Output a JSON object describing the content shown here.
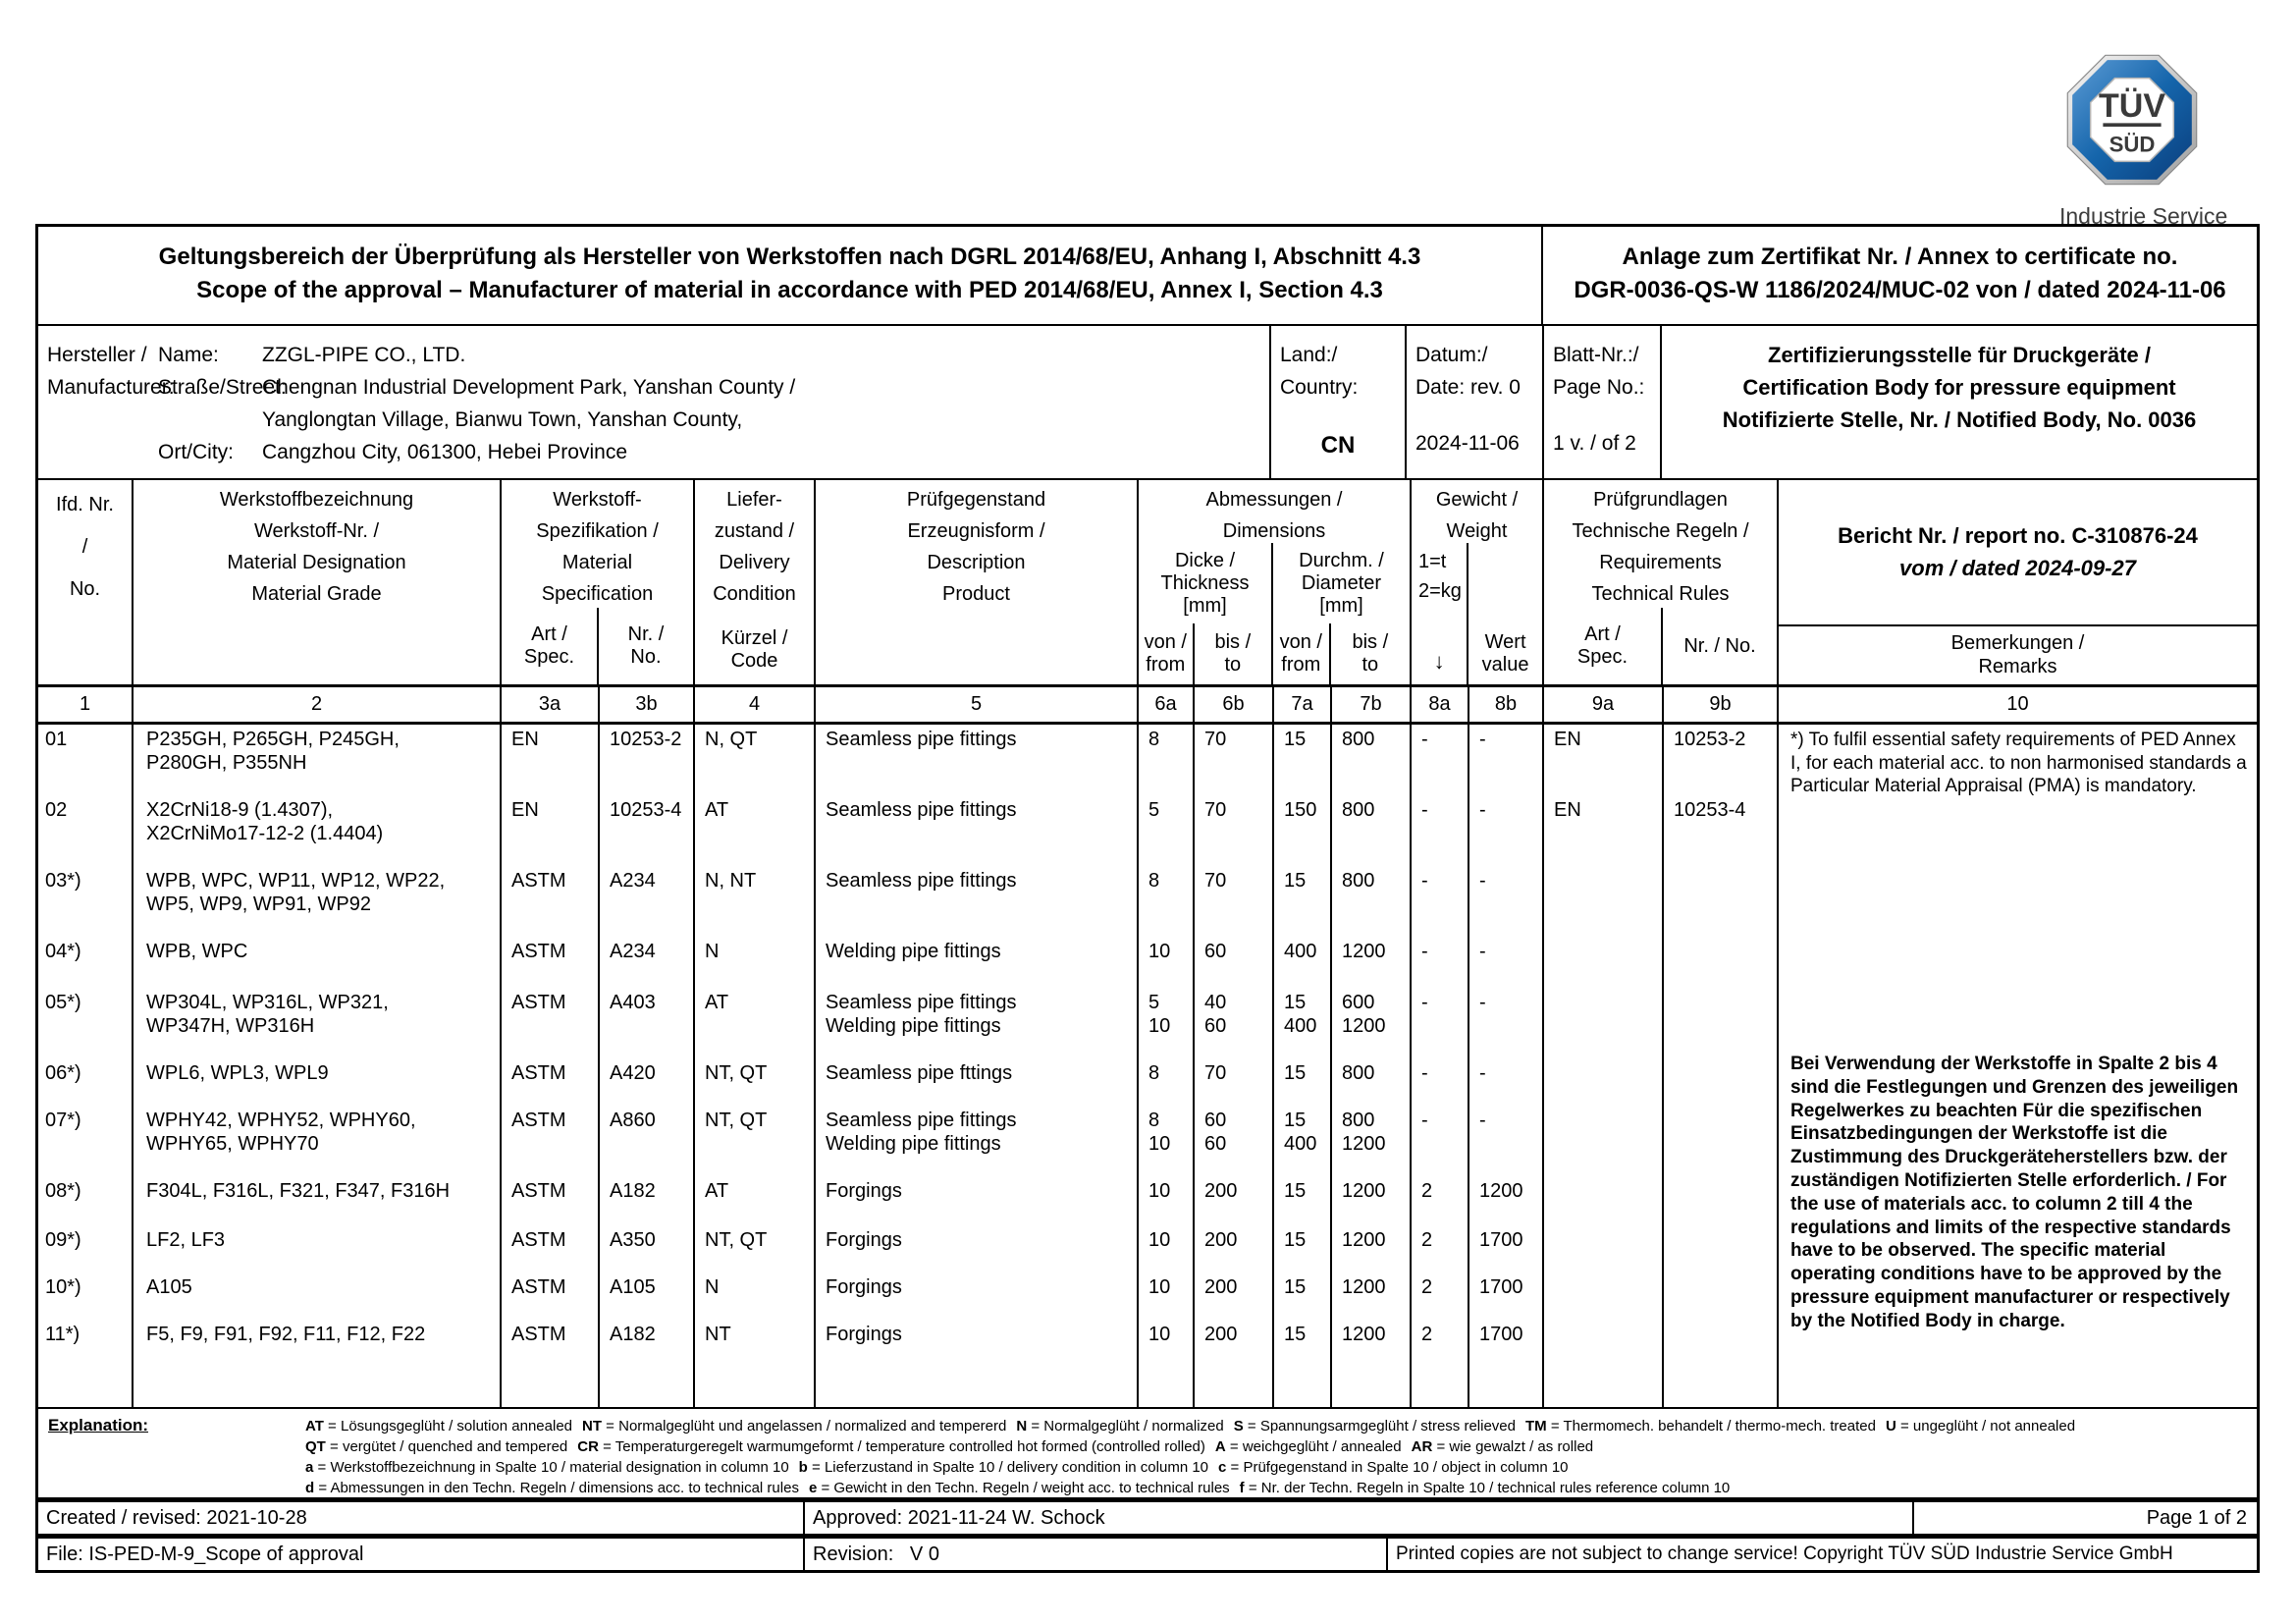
{
  "logo": {
    "top": "TÜV",
    "bottom": "SÜD",
    "caption": "Industrie Service",
    "blue": "#0f5da8"
  },
  "title": {
    "de": "Geltungsbereich der Überprüfung als Hersteller von Werkstoffen nach DGRL 2014/68/EU, Anhang I, Abschnitt 4.3",
    "en": "Scope of the approval – Manufacturer of material in accordance with PED 2014/68/EU, Annex I, Section 4.3",
    "annex1": "Anlage zum Zertifikat Nr. / Annex to certificate no.",
    "annex2": "DGR-0036-QS-W 1186/2024/MUC-02 von / dated 2024-11-06"
  },
  "info": {
    "manufacturer_label": "Hersteller /\nManufacturer:",
    "name_label": "Name:",
    "name": "ZZGL-PIPE CO., LTD.",
    "street_label": "Straße/Street:",
    "street1": "Chengnan Industrial Development Park, Yanshan County /",
    "street2": "Yanglongtan Village, Bianwu Town, Yanshan County,",
    "city_label": "Ort/City:",
    "city": "Cangzhou City, 061300, Hebei Province",
    "country_label": "Land:/\nCountry:",
    "country": "CN",
    "date_label": "Datum:/\nDate: rev. 0",
    "date": "2024-11-06",
    "page_label": "Blatt-Nr.:/\nPage No.:",
    "page": "1 v. / of 2",
    "cert_body": "Zertifizierungsstelle für Druckgeräte /\nCertification Body for pressure equipment\nNotifizierte Stelle, Nr. / Notified Body, No. 0036"
  },
  "table": {
    "head": {
      "no": "Ifd. Nr.\n/\nNo.",
      "designation": "Werkstoffbezeichnung\nWerkstoff-Nr. /\nMaterial Designation\nMaterial Grade",
      "specification": "Werkstoff-\nSpezifikation /\nMaterial\nSpecification",
      "spec_art": "Art /\nSpec.",
      "spec_nr": "Nr. /\nNo.",
      "delivery": "Liefer-\nzustand /\nDelivery\nCondition",
      "delivery_code": "Kürzel /\nCode",
      "description": "Prüfgegenstand\nErzeugnisform /\nDescription\nProduct",
      "dimensions": "Abmessungen /\nDimensions",
      "thickness": "Dicke /\nThickness\n[mm]",
      "diameter": "Durchm. /\nDiameter\n[mm]",
      "from": "von /\nfrom",
      "to": "bis /\nto",
      "weight": "Gewicht /\nWeight",
      "weight_units": "1=t\n2=kg",
      "weight_arrow": "↓",
      "weight_value": "Wert\nvalue",
      "rules": "Prüfgrundlagen\nTechnische Regeln /\nRequirements\nTechnical Rules",
      "rules_art": "Art /\nSpec.",
      "rules_nr": "Nr. / No.",
      "report1": "Bericht Nr. / report no. C-310876-24",
      "report2": "vom / dated 2024-09-27",
      "remarks": "Bemerkungen /\nRemarks",
      "numbers": [
        "1",
        "2",
        "3a",
        "3b",
        "4",
        "5",
        "6a",
        "6b",
        "7a",
        "7b",
        "8a",
        "8b",
        "9a",
        "9b",
        "10"
      ]
    },
    "rows": [
      {
        "no": "01",
        "grades": "P235GH, P265GH, P245GH,\nP280GH, P355NH",
        "spec": "EN",
        "spec_no": "10253-2",
        "code": "N, QT",
        "products": "Seamless pipe fittings",
        "t_from": "8",
        "t_to": "70",
        "d_from": "15",
        "d_to": "800",
        "w_unit": "-",
        "w_value": "-",
        "rule_spec": "EN",
        "rule_no": "10253-2"
      },
      {
        "no": "02",
        "grades": "X2CrNi18-9 (1.4307),\nX2CrNiMo17-12-2 (1.4404)",
        "spec": "EN",
        "spec_no": "10253-4",
        "code": "AT",
        "products": "Seamless pipe fittings",
        "t_from": "5",
        "t_to": "70",
        "d_from": "150",
        "d_to": "800",
        "w_unit": "-",
        "w_value": "-",
        "rule_spec": "EN",
        "rule_no": "10253-4"
      },
      {
        "no": "03*)",
        "grades": "WPB, WPC, WP11, WP12, WP22,\nWP5, WP9, WP91, WP92",
        "spec": "ASTM",
        "spec_no": "A234",
        "code": "N, NT",
        "products": "Seamless pipe fittings",
        "t_from": "8",
        "t_to": "70",
        "d_from": "15",
        "d_to": "800",
        "w_unit": "-",
        "w_value": "-",
        "rule_spec": "",
        "rule_no": ""
      },
      {
        "no": "04*)",
        "grades": "WPB, WPC",
        "spec": "ASTM",
        "spec_no": "A234",
        "code": "N",
        "products": "Welding pipe fittings",
        "t_from": "10",
        "t_to": "60",
        "d_from": "400",
        "d_to": "1200",
        "w_unit": "-",
        "w_value": "-",
        "rule_spec": "",
        "rule_no": ""
      },
      {
        "no": "05*)",
        "grades": "WP304L, WP316L, WP321,\nWP347H, WP316H",
        "spec": "ASTM",
        "spec_no": "A403",
        "code": "AT",
        "products": "Seamless pipe fittings\nWelding pipe fittings",
        "t_from": "5\n10",
        "t_to": "40\n60",
        "d_from": "15\n400",
        "d_to": "600\n1200",
        "w_unit": "-",
        "w_value": "-",
        "rule_spec": "",
        "rule_no": ""
      },
      {
        "no": "06*)",
        "grades": "WPL6, WPL3, WPL9",
        "spec": "ASTM",
        "spec_no": "A420",
        "code": "NT, QT",
        "products": "Seamless pipe fttings",
        "t_from": "8",
        "t_to": "70",
        "d_from": "15",
        "d_to": "800",
        "w_unit": "-",
        "w_value": "-",
        "rule_spec": "",
        "rule_no": ""
      },
      {
        "no": "07*)",
        "grades": "WPHY42, WPHY52, WPHY60,\nWPHY65, WPHY70",
        "spec": "ASTM",
        "spec_no": "A860",
        "code": "NT, QT",
        "products": "Seamless pipe fittings\nWelding pipe fittings",
        "t_from": "8\n10",
        "t_to": "60\n60",
        "d_from": "15\n400",
        "d_to": "800\n1200",
        "w_unit": "-",
        "w_value": "-",
        "rule_spec": "",
        "rule_no": ""
      },
      {
        "no": "08*)",
        "grades": "F304L, F316L, F321, F347, F316H",
        "spec": "ASTM",
        "spec_no": "A182",
        "code": "AT",
        "products": "Forgings",
        "t_from": "10",
        "t_to": "200",
        "d_from": "15",
        "d_to": "1200",
        "w_unit": "2",
        "w_value": "1200",
        "rule_spec": "",
        "rule_no": ""
      },
      {
        "no": "09*)",
        "grades": "LF2, LF3",
        "spec": "ASTM",
        "spec_no": "A350",
        "code": "NT, QT",
        "products": "Forgings",
        "t_from": "10",
        "t_to": "200",
        "d_from": "15",
        "d_to": "1200",
        "w_unit": "2",
        "w_value": "1700",
        "rule_spec": "",
        "rule_no": ""
      },
      {
        "no": "10*)",
        "grades": "A105",
        "spec": "ASTM",
        "spec_no": "A105",
        "code": "N",
        "products": "Forgings",
        "t_from": "10",
        "t_to": "200",
        "d_from": "15",
        "d_to": "1200",
        "w_unit": "2",
        "w_value": "1700",
        "rule_spec": "",
        "rule_no": ""
      },
      {
        "no": "11*)",
        "grades": "F5, F9, F91, F92, F11, F12, F22",
        "spec": "ASTM",
        "spec_no": "A182",
        "code": "NT",
        "products": "Forgings",
        "t_from": "10",
        "t_to": "200",
        "d_from": "15",
        "d_to": "1200",
        "w_unit": "2",
        "w_value": "1700",
        "rule_spec": "",
        "rule_no": ""
      }
    ],
    "remarks_top": "*) To fulfil essential safety requirements of PED\nAnnex I, for each material acc. to non\nharmonised standards a\nParticular Material Appraisal (PMA) is\nmandatory.",
    "remarks_main": "Bei Verwendung der Werkstoffe in Spalte 2\nbis 4 sind die Festlegungen und Grenzen des\njeweiligen Regelwerkes zu beachten\nFür die spezifischen Einsatzbedingungen der\nWerkstoffe ist die Zustimmung des\nDruckgeräteherstellers bzw. der zuständigen\nNotifizierten Stelle erforderlich. /\nFor the use of materials acc. to column 2 till\n4 the regulations and limits of the respective\nstandards have to be observed.\nThe specific material operating conditions\nhave to be approved by the pressure\nequipment manufacturer or respectively by\nthe Notified Body in charge."
  },
  "explanation": {
    "label": "Explanation:",
    "lines": [
      [
        [
          "AT",
          "= Lösungsgeglüht / solution annealed"
        ],
        [
          "NT",
          "= Normalgeglüht und angelassen / normalized and tempererd"
        ],
        [
          "N",
          "= Normalgeglüht / normalized"
        ],
        [
          "S",
          "= Spannungsarmgeglüht / stress relieved"
        ],
        [
          "TM",
          "= Thermomech. behandelt / thermo-mech. treated"
        ],
        [
          "U",
          "= ungeglüht / not annealed"
        ]
      ],
      [
        [
          "QT",
          "= vergütet / quenched and tempered"
        ],
        [
          "CR",
          "= Temperaturgeregelt warmumgeformt / temperature controlled hot formed (controlled rolled)"
        ],
        [
          "A",
          "= weichgeglüht / annealed"
        ],
        [
          "AR",
          "= wie gewalzt / as rolled"
        ]
      ],
      [
        [
          "a",
          "= Werkstoffbezeichnung in Spalte 10 / material designation in column 10"
        ],
        [
          "b",
          "= Lieferzustand in Spalte 10 / delivery condition in column 10"
        ],
        [
          "c",
          "= Prüfgegenstand in Spalte 10 / object in column 10"
        ]
      ],
      [
        [
          "d",
          "= Abmessungen in den Techn. Regeln / dimensions acc. to technical rules"
        ],
        [
          "e",
          "= Gewicht in den Techn. Regeln / weight acc. to technical rules"
        ],
        [
          "f",
          "= Nr. der Techn. Regeln in Spalte 10 / technical rules reference column 10"
        ]
      ]
    ]
  },
  "footer": {
    "created": "Created / revised: 2021-10-28",
    "approved": "Approved: 2021-11-24 W. Schock",
    "page": "Page 1 of 2",
    "file": "File: IS-PED-M-9_Scope of approval",
    "revision": "Revision:   V 0",
    "copyright": "Printed copies are not subject to change service! Copyright TÜV SÜD Industrie Service GmbH"
  }
}
